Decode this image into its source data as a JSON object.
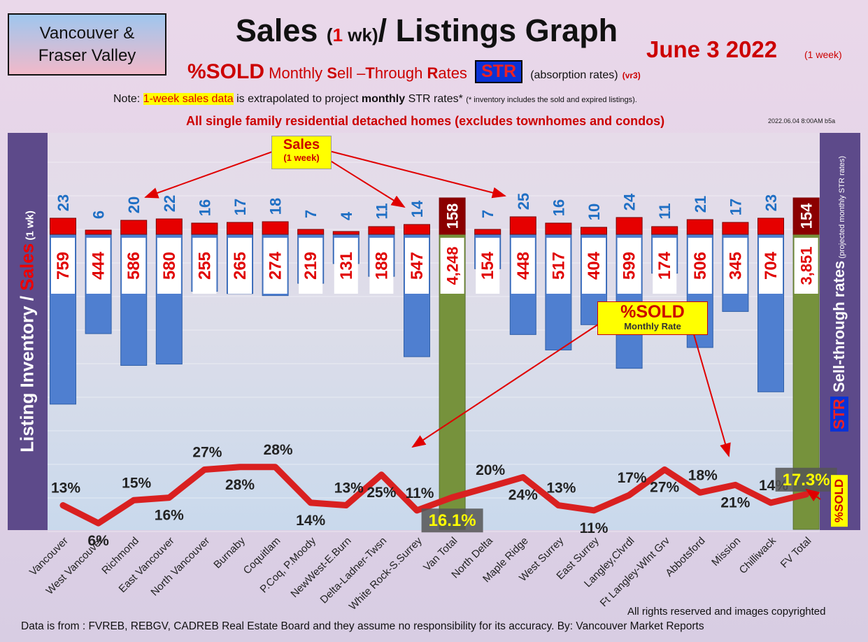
{
  "header": {
    "region_line1": "Vancouver &",
    "region_line2": "Fraser Valley",
    "title_part1": "Sales ",
    "title_paren_open": "(",
    "title_num": "1",
    "title_paren_close": " wk)",
    "title_part2": "/ Listings Graph",
    "date": "June 3  2022",
    "date_sub": "(1 week)",
    "sub_sold": "%SOLD",
    "sub_monthly": "Monthly",
    "sub_rest": "S",
    "sub_ell": "ell –",
    "sub_t": "T",
    "sub_hrough": "hrough",
    "sub_r": "R",
    "sub_ates": "ates",
    "str_badge": "STR",
    "absorb": "(absorption rates)",
    "vr": "(vr3)",
    "note_prefix": "Note:",
    "note_highlight": "1-week sales data",
    "note_mid": "is extrapolated to project",
    "note_bold": "monthly",
    "note_end": "STR rates*",
    "note_small": "(* inventory includes the sold and expired listings).",
    "detached": "All single family residential detached homes (excludes townhomes and condos)",
    "stamp": "2022.06.04 8:00AM b5a"
  },
  "axes": {
    "left_listing": "Listing Inventory",
    "left_slash": " / ",
    "left_sales": "Sales",
    "left_small": " (1 wk)",
    "right_str": "STR",
    "right_title": " Sell-through rates",
    "right_small": " (projected monthly STR rates)",
    "right_sold": "%SOLD"
  },
  "callouts": {
    "sales_line1": "Sales",
    "sales_line2": "(1 week)",
    "sold_line1": "%SOLD",
    "sold_line2": "Monthly Rate"
  },
  "footer": {
    "rights": "All rights reserved and  images copyrighted",
    "source": "Data is from : FVREB, REBGV, CADREB Real Estate Board and they assume no responsibility for its accuracy. By: Vancouver Market Reports"
  },
  "colors": {
    "listing_bar": "#4f7fd0",
    "total_bar": "#76923c",
    "sales_bar": "#e60000",
    "total_sales_bar": "#8b0000",
    "str_line": "#d92020",
    "inventory_label": "#e00000",
    "sales_label": "#1f6fc4"
  },
  "chart_data": {
    "type": "bar",
    "categories": [
      "Vancouver",
      "West Vancouver",
      "Richmond",
      "East Vancouver",
      "North Vancouver",
      "Burnaby",
      "Coquitlam",
      "P.Coq, P.Moody",
      "NewWest-E.Burn",
      "Delta-Ladner-Twsn",
      "White Rock-S.Surrey",
      "Van Total",
      "North Delta",
      "Maple Ridge",
      "West Surrey",
      "East Surrey",
      "Langley,Clvrdl",
      "Ft Langley-Wlnt Grv",
      "Abbotsford",
      "Mission",
      "Chilliwack",
      "FV Total"
    ],
    "inventory_labels": [
      "759",
      "444",
      "586",
      "580",
      "255",
      "265",
      "274",
      "219",
      "131",
      "188",
      "547",
      "4,248",
      "154",
      "448",
      "517",
      "404",
      "599",
      "174",
      "506",
      "345",
      "704",
      "3,851"
    ],
    "series": [
      {
        "name": "Listing Inventory",
        "values": [
          759,
          444,
          586,
          580,
          255,
          265,
          274,
          219,
          131,
          188,
          547,
          4248,
          154,
          448,
          517,
          404,
          599,
          174,
          506,
          345,
          704,
          3851
        ]
      },
      {
        "name": "Sales",
        "values": [
          23,
          6,
          20,
          22,
          16,
          17,
          18,
          7,
          4,
          11,
          14,
          158,
          7,
          25,
          16,
          10,
          24,
          11,
          21,
          17,
          23,
          154
        ]
      },
      {
        "name": "Sell-through rates",
        "values": [
          13,
          6,
          15,
          16,
          27,
          28,
          28,
          14,
          13,
          25,
          11,
          16.1,
          20,
          24,
          13,
          11,
          17,
          27,
          18,
          21,
          14,
          17.3
        ]
      }
    ],
    "str_labels": [
      "13%",
      "6%",
      "15%",
      "16%",
      "27%",
      "28%",
      "28%",
      "14%",
      "13%",
      "25%",
      "11%",
      "16.1%",
      "20%",
      "24%",
      "13%",
      "11%",
      "17%",
      "27%",
      "18%",
      "21%",
      "14%",
      "17.3%"
    ],
    "totals": [
      "Van Total",
      "FV Total"
    ]
  }
}
